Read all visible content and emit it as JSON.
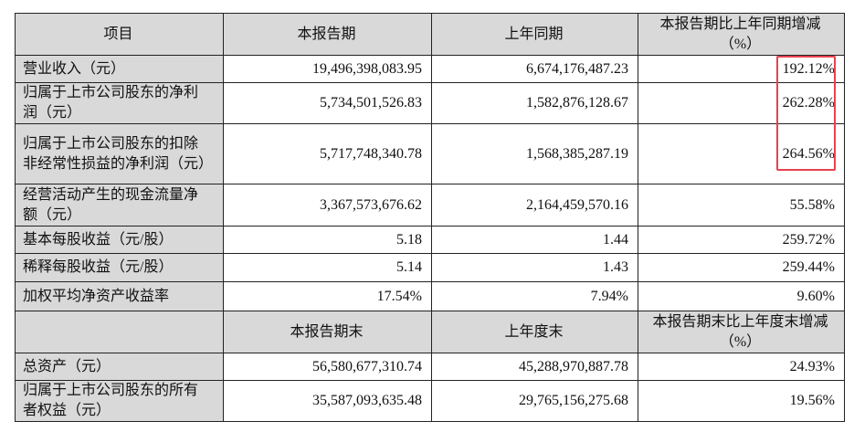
{
  "header1": {
    "item": "项目",
    "current": "本报告期",
    "prior": "上年同期",
    "change": "本报告期比上年同期增减",
    "change_unit": "（%）"
  },
  "rows1": [
    {
      "label": "营业收入（元）",
      "current": "19,496,398,083.95",
      "prior": "6,674,176,487.23",
      "change": "192.12%"
    },
    {
      "label": "归属于上市公司股东的净利润（元）",
      "current": "5,734,501,526.83",
      "prior": "1,582,876,128.67",
      "change": "262.28%"
    },
    {
      "label": "归属于上市公司股东的扣除非经常性损益的净利润（元）",
      "current": "5,717,748,340.78",
      "prior": "1,568,385,287.19",
      "change": "264.56%"
    },
    {
      "label": "经营活动产生的现金流量净额（元）",
      "current": "3,367,573,676.62",
      "prior": "2,164,459,570.16",
      "change": "55.58%"
    },
    {
      "label": "基本每股收益（元/股）",
      "current": "5.18",
      "prior": "1.44",
      "change": "259.72%"
    },
    {
      "label": "稀释每股收益（元/股）",
      "current": "5.14",
      "prior": "1.43",
      "change": "259.44%"
    },
    {
      "label": "加权平均净资产收益率",
      "current": "17.54%",
      "prior": "7.94%",
      "change": "9.60%"
    }
  ],
  "header2": {
    "item": "",
    "current": "本报告期末",
    "prior": "上年度末",
    "change": "本报告期末比上年度末增减",
    "change_unit": "（%）"
  },
  "rows2": [
    {
      "label": "总资产（元）",
      "current": "56,580,677,310.74",
      "prior": "45,288,970,887.78",
      "change": "24.93%"
    },
    {
      "label": "归属于上市公司股东的所有者权益（元）",
      "current": "35,587,093,635.48",
      "prior": "29,765,156,275.68",
      "change": "19.56%"
    }
  ],
  "highlight_color": "#e8414f"
}
